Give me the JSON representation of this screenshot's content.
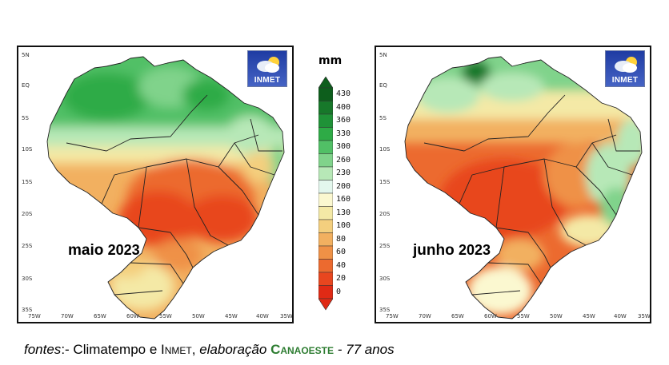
{
  "maps": {
    "may": {
      "month": "maio",
      "year": "2023"
    },
    "june": {
      "month": "junho",
      "year": "2023"
    },
    "lat_labels": [
      "5N",
      "EQ",
      "5S",
      "10S",
      "15S",
      "20S",
      "25S",
      "30S",
      "35S"
    ],
    "lon_labels": [
      "75W",
      "70W",
      "65W",
      "60W",
      "55W",
      "50W",
      "45W",
      "40W",
      "35W"
    ],
    "logo_text": "INMET"
  },
  "legend": {
    "unit": "mm",
    "levels": [
      "430",
      "400",
      "360",
      "330",
      "300",
      "260",
      "230",
      "200",
      "160",
      "130",
      "100",
      "80",
      "60",
      "40",
      "20",
      "0"
    ],
    "colors": [
      "#0d5e1c",
      "#17782a",
      "#1f9237",
      "#2eab46",
      "#51c066",
      "#80d38b",
      "#b7e8b7",
      "#e3f7ed",
      "#fbf8d0",
      "#f4e9a6",
      "#f4cf7e",
      "#f2b060",
      "#ef9146",
      "#ec6a2f",
      "#e8461f",
      "#e02a15"
    ]
  },
  "caption": {
    "prefix": "fontes",
    "sep": ":- Climatempo e ",
    "inmet": "Inmet",
    "sep2": ", ",
    "elab": "elaboração",
    "sp": " ",
    "org": "Canaoeste",
    "suffix": " - 77 anos"
  }
}
